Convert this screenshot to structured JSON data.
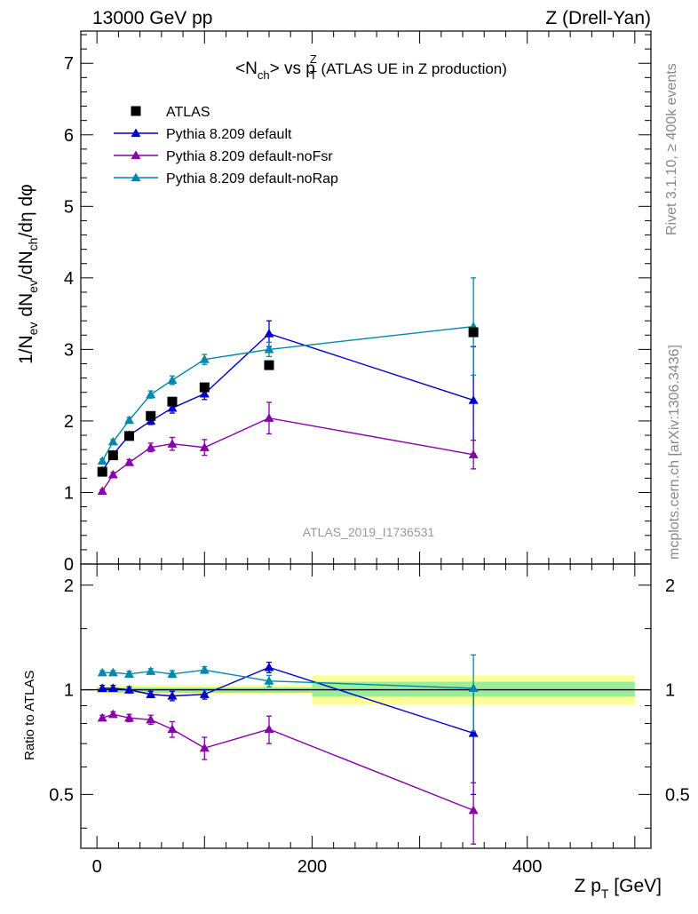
{
  "header": {
    "left": "13000 GeV pp",
    "right": "Z (Drell-Yan)"
  },
  "side": {
    "rivet": "Rivet 3.1.10, ≥ 400k events",
    "mcplots": "mcplots.cern.ch [arXiv:1306.3436]"
  },
  "watermark": "ATLAS_2019_I1736531",
  "chart_data": {
    "type": "scatter",
    "title": {
      "prefix": "<N",
      "prefix_sub": "ch",
      "mid": "> vs p",
      "mid_sup": "Z",
      "mid_sub": "T",
      "suffix": " (ATLAS UE in Z production)"
    },
    "xlabel": {
      "main": "Z p",
      "sub": "T",
      "tail": " [GeV]"
    },
    "ylabel": "1/N_ev dN_ch/dN_ch/dη dφ",
    "ylabel_parts": {
      "a": "1/N",
      "a_sub": "ev",
      "b": " dN",
      "b_sub": "ev",
      "c": "/dN",
      "c_sub": "ch",
      "d": "/dη dφ"
    },
    "ratio_ylabel": "Ratio to ATLAS",
    "xlim": [
      -15,
      515
    ],
    "ylim": [
      0,
      7.45
    ],
    "ratio_ylim": [
      0.35,
      2.3
    ],
    "x_ticks": [
      0,
      200,
      400
    ],
    "y_ticks": [
      0,
      1,
      2,
      3,
      4,
      5,
      6,
      7
    ],
    "ratio_ticks": [
      0.5,
      1,
      2
    ],
    "data": {
      "name": "ATLAS",
      "color": "#000000",
      "x": [
        5,
        15,
        30,
        50,
        70,
        100,
        160,
        350
      ],
      "y": [
        1.29,
        1.52,
        1.79,
        2.07,
        2.27,
        2.47,
        2.78,
        3.24
      ],
      "ratio_band_bins": [
        {
          "x": [
            0,
            200
          ],
          "inner": [
            0.98,
            1.015
          ],
          "outer": [
            0.97,
            1.03
          ]
        },
        {
          "x": [
            200,
            500
          ],
          "inner": [
            0.955,
            1.055
          ],
          "outer": [
            0.905,
            1.1
          ]
        }
      ],
      "band_colors": {
        "inner": "#99ee99",
        "outer": "#ffff99"
      }
    },
    "series": [
      {
        "name": "Pythia 8.209 default",
        "color": "#0000cc",
        "x": [
          5,
          15,
          30,
          50,
          70,
          100,
          160,
          350
        ],
        "y": [
          1.3,
          1.53,
          1.8,
          2.0,
          2.18,
          2.38,
          3.22,
          2.29
        ],
        "err": [
          0.03,
          0.03,
          0.03,
          0.05,
          0.07,
          0.08,
          0.18,
          0.75
        ],
        "ratio": [
          1.01,
          1.01,
          1.0,
          0.97,
          0.96,
          0.97,
          1.16,
          0.75
        ],
        "ratio_err": [
          0.02,
          0.02,
          0.02,
          0.02,
          0.03,
          0.03,
          0.04,
          0.25
        ]
      },
      {
        "name": "Pythia 8.209 default-noFsr",
        "color": "#8800aa",
        "x": [
          5,
          15,
          30,
          50,
          70,
          100,
          160,
          350
        ],
        "y": [
          1.02,
          1.25,
          1.42,
          1.63,
          1.68,
          1.63,
          2.04,
          1.53
        ],
        "err": [
          0.02,
          0.03,
          0.04,
          0.06,
          0.09,
          0.11,
          0.22,
          0.2
        ],
        "ratio": [
          0.83,
          0.85,
          0.83,
          0.82,
          0.77,
          0.68,
          0.77,
          0.45
        ],
        "ratio_err": [
          0.015,
          0.015,
          0.02,
          0.025,
          0.04,
          0.05,
          0.07,
          0.09
        ]
      },
      {
        "name": "Pythia 8.209 default-noRap",
        "color": "#0088aa",
        "x": [
          5,
          15,
          30,
          50,
          70,
          100,
          160,
          350
        ],
        "y": [
          1.44,
          1.71,
          2.01,
          2.37,
          2.57,
          2.86,
          3.0,
          3.32
        ],
        "err": [
          0.03,
          0.03,
          0.04,
          0.05,
          0.06,
          0.07,
          0.1,
          0.68
        ],
        "ratio": [
          1.12,
          1.12,
          1.11,
          1.13,
          1.11,
          1.14,
          1.06,
          1.01
        ],
        "ratio_err": [
          0.015,
          0.015,
          0.02,
          0.02,
          0.025,
          0.025,
          0.04,
          0.25
        ]
      }
    ]
  }
}
